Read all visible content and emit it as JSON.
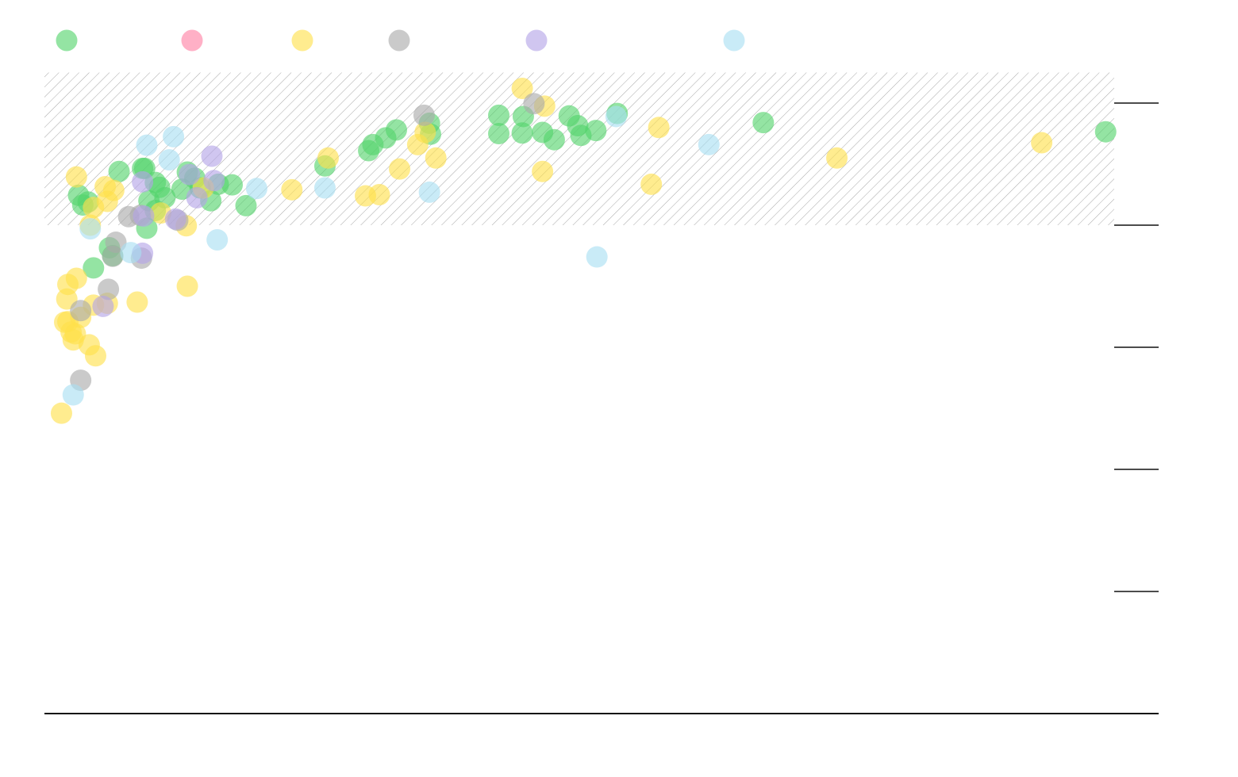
{
  "chart_data": {
    "type": "scatter",
    "title": "",
    "xlabel": "",
    "ylabel": "",
    "xlim": [
      0,
      100
    ],
    "ylim": [
      0,
      100
    ],
    "yticks": [
      100,
      80,
      60,
      40,
      20,
      0
    ],
    "legend": {
      "placement": "top-left"
    },
    "reference_band": {
      "y_from": 80,
      "y_to": 105,
      "fill": "diagonal-hatch",
      "color": "#9e9e9e"
    },
    "series": [
      {
        "color": "#52d36b",
        "points": [
          [
            2.9,
            84.9
          ],
          [
            3.8,
            83.8
          ],
          [
            3.3,
            83.3
          ],
          [
            4.3,
            73.0
          ],
          [
            6.7,
            88.8
          ],
          [
            6.1,
            75.0
          ],
          [
            5.8,
            76.3
          ],
          [
            9.1,
            89.3
          ],
          [
            8.9,
            89.3
          ],
          [
            10.1,
            87.0
          ],
          [
            11.0,
            84.5
          ],
          [
            10.5,
            86.2
          ],
          [
            9.3,
            79.5
          ],
          [
            10.1,
            82.4
          ],
          [
            13.1,
            88.7
          ],
          [
            12.6,
            85.9
          ],
          [
            13.8,
            87.7
          ],
          [
            17.3,
            86.6
          ],
          [
            15.3,
            84.0
          ],
          [
            16.0,
            86.7
          ],
          [
            18.6,
            83.2
          ],
          [
            26.0,
            89.7
          ],
          [
            30.1,
            92.2
          ],
          [
            30.5,
            93.2
          ],
          [
            31.7,
            94.3
          ],
          [
            32.7,
            95.6
          ],
          [
            35.9,
            94.9
          ],
          [
            35.8,
            96.7
          ],
          [
            42.3,
            95.0
          ],
          [
            42.3,
            98.0
          ],
          [
            44.6,
            97.8
          ],
          [
            44.5,
            95.1
          ],
          [
            46.4,
            95.2
          ],
          [
            47.5,
            94.0
          ],
          [
            48.9,
            97.9
          ],
          [
            50.0,
            94.7
          ],
          [
            49.7,
            96.3
          ],
          [
            51.4,
            95.5
          ],
          [
            53.4,
            98.3
          ],
          [
            67.1,
            96.8
          ],
          [
            99.2,
            95.3
          ],
          [
            9.5,
            84.0
          ],
          [
            14.3,
            86.1
          ]
        ]
      },
      {
        "color": "#ffe04a",
        "points": [
          [
            1.3,
            49.2
          ],
          [
            1.6,
            64.1
          ],
          [
            1.9,
            64.2
          ],
          [
            2.4,
            61.2
          ],
          [
            2.6,
            62.2
          ],
          [
            3.9,
            60.4
          ],
          [
            4.5,
            58.6
          ],
          [
            3.1,
            64.9
          ],
          [
            2.2,
            62.5
          ],
          [
            1.8,
            67.9
          ],
          [
            1.9,
            70.3
          ],
          [
            2.7,
            71.3
          ],
          [
            4.3,
            66.9
          ],
          [
            5.6,
            67.2
          ],
          [
            4.0,
            80.0
          ],
          [
            5.4,
            86.3
          ],
          [
            6.2,
            85.7
          ],
          [
            5.6,
            83.9
          ],
          [
            8.4,
            67.4
          ],
          [
            13.1,
            70.0
          ],
          [
            13.0,
            79.9
          ],
          [
            10.6,
            82.0
          ],
          [
            2.7,
            87.9
          ],
          [
            4.3,
            82.9
          ],
          [
            14.6,
            86.1
          ],
          [
            22.9,
            85.8
          ],
          [
            26.3,
            91.0
          ],
          [
            29.8,
            84.8
          ],
          [
            31.1,
            85.0
          ],
          [
            33.0,
            89.2
          ],
          [
            34.7,
            93.2
          ],
          [
            36.4,
            91.0
          ],
          [
            44.5,
            102.4
          ],
          [
            46.6,
            99.5
          ],
          [
            46.4,
            88.8
          ],
          [
            57.3,
            96.0
          ],
          [
            56.6,
            86.7
          ],
          [
            74.0,
            91.0
          ],
          [
            93.2,
            93.5
          ],
          [
            35.4,
            95.2
          ]
        ]
      },
      {
        "color": "#a9a9a9",
        "points": [
          [
            3.1,
            54.6
          ],
          [
            3.1,
            66.0
          ],
          [
            5.7,
            69.5
          ],
          [
            6.1,
            74.9
          ],
          [
            6.4,
            77.2
          ],
          [
            7.6,
            81.4
          ],
          [
            8.7,
            81.6
          ],
          [
            8.8,
            74.6
          ],
          [
            12.2,
            80.8
          ],
          [
            35.3,
            98.0
          ],
          [
            45.6,
            99.9
          ]
        ]
      },
      {
        "color": "#b3a3e6",
        "points": [
          [
            5.2,
            66.7
          ],
          [
            8.9,
            87.1
          ],
          [
            9.0,
            81.5
          ],
          [
            8.9,
            75.4
          ],
          [
            13.3,
            88.3
          ],
          [
            15.4,
            91.3
          ],
          [
            15.6,
            87.3
          ],
          [
            14.0,
            84.5
          ],
          [
            12.0,
            81.0
          ]
        ]
      },
      {
        "color": "#a8dff2",
        "points": [
          [
            2.4,
            52.2
          ],
          [
            4.0,
            79.4
          ],
          [
            7.8,
            75.5
          ],
          [
            9.3,
            93.1
          ],
          [
            11.8,
            94.5
          ],
          [
            11.4,
            90.7
          ],
          [
            15.9,
            77.6
          ],
          [
            19.6,
            86.0
          ],
          [
            26.0,
            86.1
          ],
          [
            35.8,
            85.4
          ],
          [
            53.3,
            97.8
          ],
          [
            62.0,
            93.2
          ],
          [
            51.5,
            74.8
          ]
        ]
      }
    ]
  }
}
